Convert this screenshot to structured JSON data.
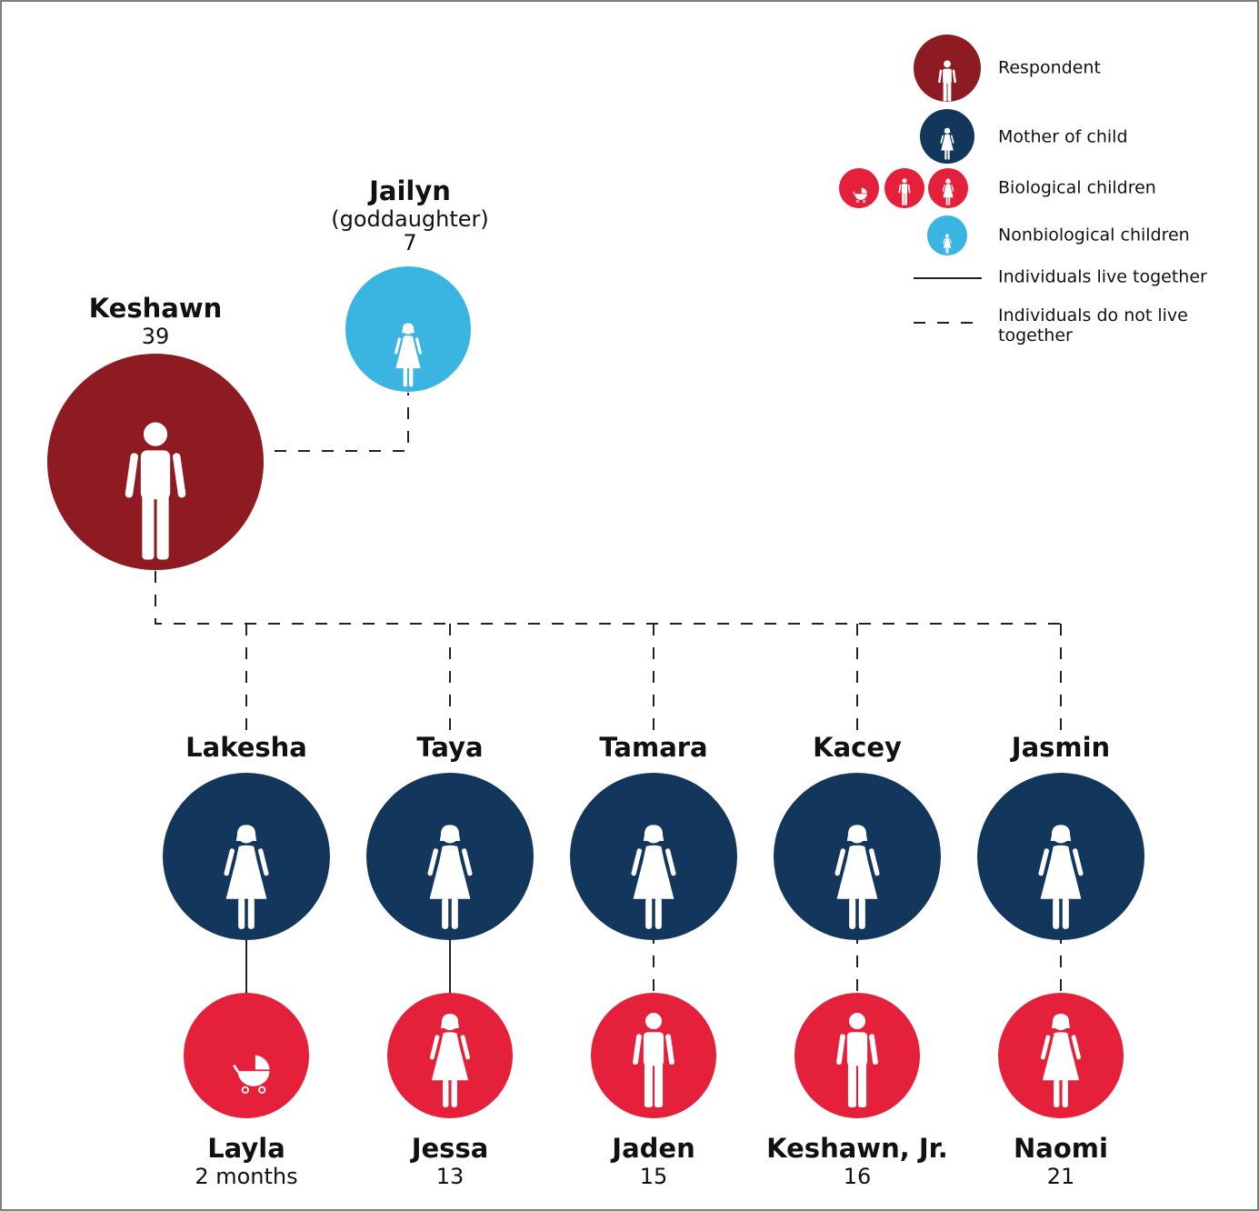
{
  "respondent": {
    "name": "Keshawn",
    "age": "39"
  },
  "nonbiological_child": {
    "name": "Jailyn",
    "relation": "(goddaughter)",
    "age": "7"
  },
  "families": [
    {
      "mother": "Lakesha",
      "child": "Layla",
      "age": "2 months",
      "lives_together": true
    },
    {
      "mother": "Taya",
      "child": "Jessa",
      "age": "13",
      "lives_together": true
    },
    {
      "mother": "Tamara",
      "child": "Jaden",
      "age": "15",
      "lives_together": false
    },
    {
      "mother": "Kacey",
      "child": "Keshawn, Jr.",
      "age": "16",
      "lives_together": false
    },
    {
      "mother": "Jasmin",
      "child": "Naomi",
      "age": "21",
      "lives_together": false
    }
  ],
  "legend": {
    "respondent": "Respondent",
    "mother": "Mother of child",
    "biological": "Biological children",
    "nonbiological": "Nonbiological children",
    "live_together": "Individuals live together",
    "not_live_together": "Individuals do not live together"
  },
  "colors": {
    "respondent": "#8e1a22",
    "mother": "#13365c",
    "biological": "#e4203a",
    "nonbiological": "#3ab4e0"
  }
}
